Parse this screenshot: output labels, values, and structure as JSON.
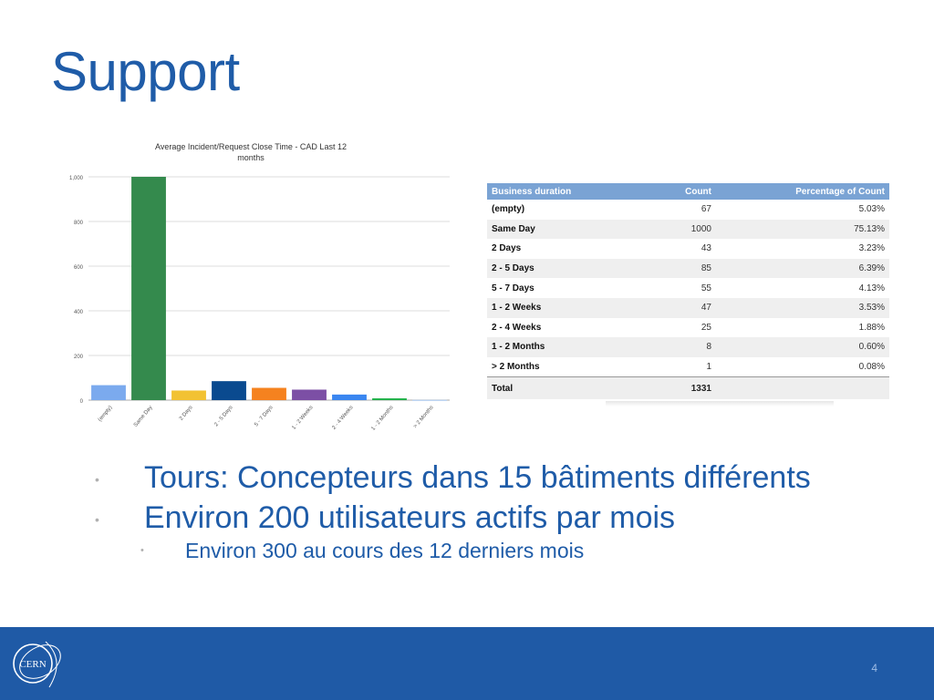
{
  "slide": {
    "title": "Support",
    "page_number": "4",
    "logo_text": "CERN"
  },
  "chart_data": {
    "type": "bar",
    "title": "Average Incident/Request Close Time - CAD Last 12 months",
    "categories": [
      "(empty)",
      "Same Day",
      "2 Days",
      "2 - 5 Days",
      "5 - 7 Days",
      "1 - 2 Weeks",
      "2 - 4 Weeks",
      "1 - 2 Months",
      "> 2 Months"
    ],
    "values": [
      67,
      1000,
      43,
      85,
      55,
      47,
      25,
      8,
      1
    ],
    "colors": [
      "#7baaee",
      "#348a4d",
      "#f2c233",
      "#0a4a8f",
      "#f5821f",
      "#7c4fa5",
      "#3a86f0",
      "#21b24a",
      "#a9c9f0"
    ],
    "yticks": [
      0,
      200,
      400,
      600,
      800,
      1000
    ],
    "ytick_labels": [
      "0",
      "200",
      "400",
      "600",
      "800",
      "1,000"
    ],
    "ylim": [
      0,
      1000
    ],
    "grid": true,
    "xlabel": "",
    "ylabel": ""
  },
  "table": {
    "headers": [
      "Business duration",
      "Count",
      "Percentage of Count"
    ],
    "rows": [
      [
        "(empty)",
        "67",
        "5.03%"
      ],
      [
        "Same Day",
        "1000",
        "75.13%"
      ],
      [
        "2 Days",
        "43",
        "3.23%"
      ],
      [
        "2 - 5 Days",
        "85",
        "6.39%"
      ],
      [
        "5 - 7 Days",
        "55",
        "4.13%"
      ],
      [
        "1 - 2 Weeks",
        "47",
        "3.53%"
      ],
      [
        "2 - 4 Weeks",
        "25",
        "1.88%"
      ],
      [
        "1 - 2 Months",
        "8",
        "0.60%"
      ],
      [
        "> 2 Months",
        "1",
        "0.08%"
      ]
    ],
    "total_label": "Total",
    "total_count": "1331"
  },
  "bullets": {
    "b1": "Tours: Concepteurs dans 15 bâtiments différents",
    "b2": "Environ 200 utilisateurs actifs par mois",
    "b2_sub": "Environ 300 au cours des 12 derniers mois"
  }
}
